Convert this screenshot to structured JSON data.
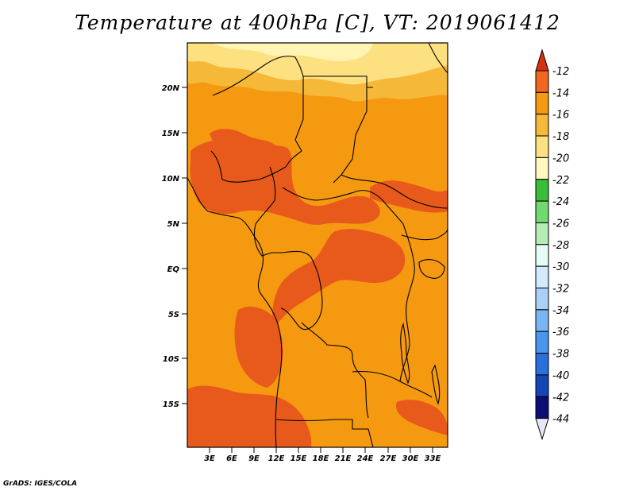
{
  "title": "Temperature at 400hPa [C], VT: 2019061412",
  "credit": "GrADS: IGES/COLA",
  "map": {
    "lat_ticks": [
      "20N",
      "15N",
      "10N",
      "5N",
      "EQ",
      "5S",
      "10S",
      "15S"
    ],
    "lon_ticks": [
      "3E",
      "6E",
      "9E",
      "12E",
      "15E",
      "18E",
      "21E",
      "24E",
      "27E",
      "30E",
      "33E"
    ]
  },
  "colorbar": {
    "labels": [
      "-12",
      "-14",
      "-16",
      "-18",
      "-20",
      "-22",
      "-24",
      "-26",
      "-28",
      "-30",
      "-32",
      "-34",
      "-36",
      "-38",
      "-40",
      "-42",
      "-44"
    ],
    "colors": [
      "#d73010",
      "#f06820",
      "#f59a10",
      "#f5b838",
      "#fde080",
      "#fff8c0",
      "#39bd3a",
      "#72d872",
      "#b4ecb4",
      "#e6fcf6",
      "#d2eafc",
      "#aacff8",
      "#78b6f4",
      "#4a96ec",
      "#2a70dc",
      "#1446b6",
      "#0c0e78",
      "#e6e6f8"
    ]
  },
  "colors": {
    "warm_dark": "#e85a1c",
    "warm_mid": "#f59a10",
    "warm_light": "#f5b838",
    "warm_pale": "#fde080",
    "warm_palest": "#fff4b4",
    "border": "#000000"
  }
}
